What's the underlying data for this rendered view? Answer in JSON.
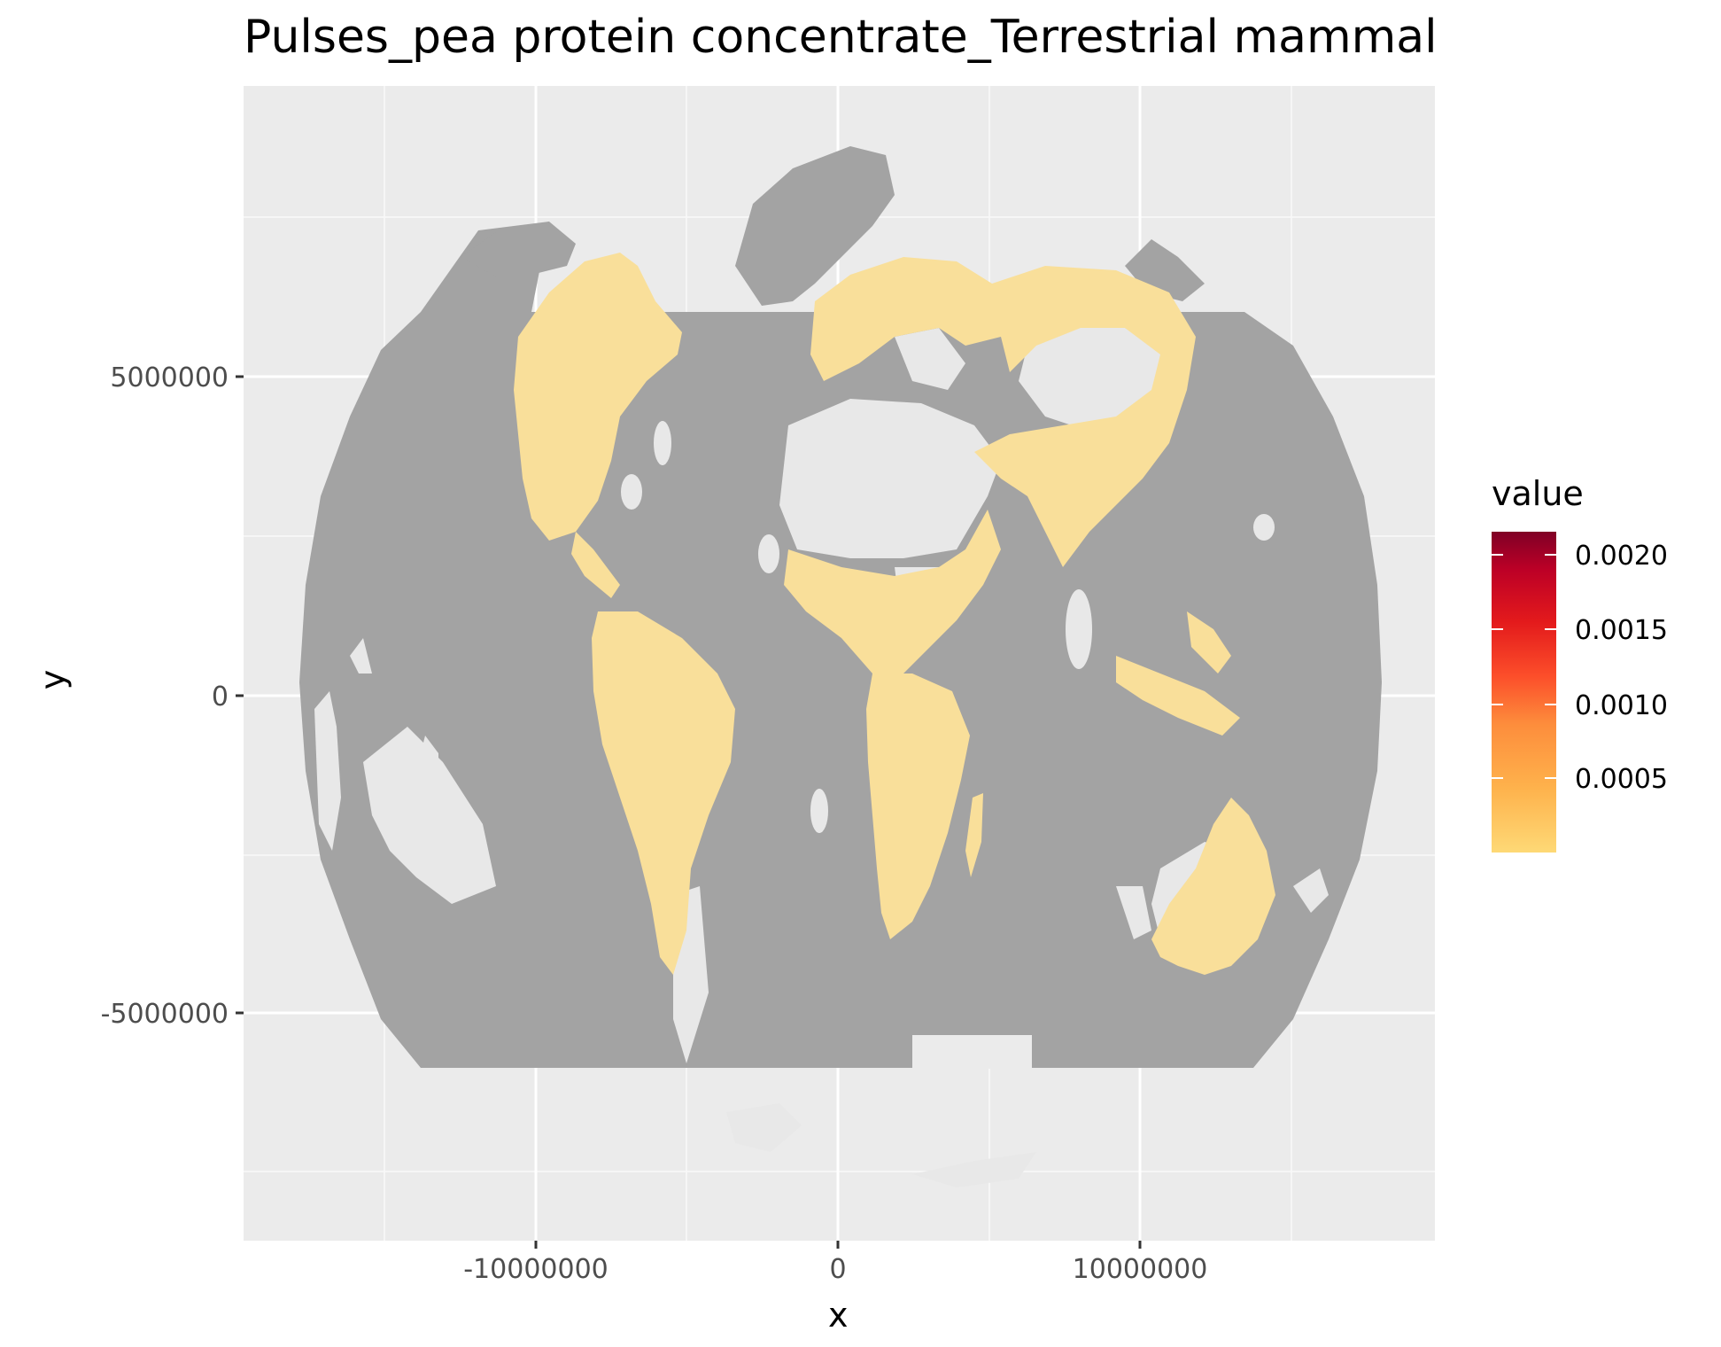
{
  "title": "Pulses_pea protein concentrate_Terrestrial mammal",
  "x_axis": {
    "label": "x",
    "ticks": [
      "-10000000",
      "0",
      "10000000"
    ]
  },
  "y_axis": {
    "label": "y",
    "ticks": [
      "5000000",
      "0",
      "-5000000"
    ]
  },
  "legend": {
    "title": "value",
    "ticks": [
      "0.0020",
      "0.0015",
      "0.0010",
      "0.0005"
    ],
    "colors": [
      "#800026",
      "#bd0026",
      "#e31a1c",
      "#fc4e2a",
      "#fd8d3c",
      "#feb24c",
      "#fed976"
    ]
  },
  "colors": {
    "panel_bg": "#ebebeb",
    "grid": "#ffffff",
    "no_data": "#a3a3a3",
    "land_low": "#f9df9a",
    "land_no_value": "#e8e8e8"
  },
  "chart_data": {
    "type": "heatmap",
    "title": "Pulses_pea protein concentrate_Terrestrial mammal",
    "xlabel": "x",
    "ylabel": "y",
    "xlim": [
      -19500000,
      19700000
    ],
    "ylim": [
      -8700000,
      9200000
    ],
    "x_ticks": [
      -10000000,
      0,
      10000000
    ],
    "y_ticks": [
      5000000,
      0,
      -5000000
    ],
    "fill_scale": {
      "name": "value",
      "min": 0,
      "max": 0.0021,
      "breaks": [
        0.0005,
        0.001,
        0.0015,
        0.002
      ]
    },
    "grid": true,
    "legend_position": "right"
  }
}
